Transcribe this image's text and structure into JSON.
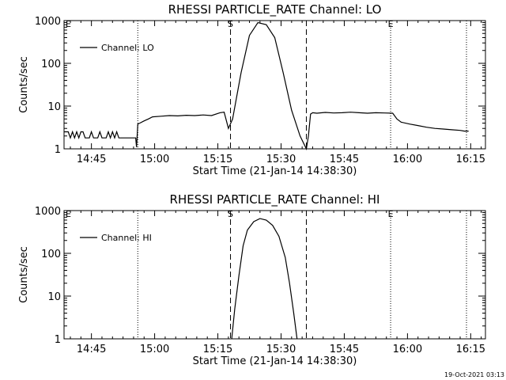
{
  "timestamp": "19-Oct-2021 03:13",
  "chart_data": [
    {
      "type": "line",
      "title": "RHESSI PARTICLE_RATE Channel: LO",
      "xlabel": "Start Time (21-Jan-14 14:38:30)",
      "ylabel": "Counts/sec",
      "yscale": "log",
      "xlim_min": [
        0,
        100
      ],
      "ylim": [
        1,
        1000
      ],
      "x_ticks": [
        6.5,
        21.5,
        36.5,
        51.5,
        66.5,
        81.5,
        96.5
      ],
      "x_tick_labels": [
        "14:45",
        "15:00",
        "15:15",
        "15:30",
        "15:45",
        "16:00",
        "16:15"
      ],
      "y_ticks": [
        1,
        10,
        100,
        1000
      ],
      "y_tick_labels": [
        "1",
        "10",
        "100",
        "1000"
      ],
      "legend": {
        "entries": [
          "Channel: LO"
        ],
        "position": "top-left"
      },
      "dashed_lines_min": [
        39.5,
        57.5
      ],
      "dotted_lines_min": [
        17.5,
        77.5,
        95.5
      ],
      "markers": [
        {
          "label": "S",
          "x": 39.5
        },
        {
          "label": "E",
          "x": 77.5
        }
      ],
      "series": [
        {
          "name": "Channel: LO",
          "x": [
            0,
            1,
            1.5,
            2,
            2.5,
            3,
            3.5,
            4,
            4.5,
            5,
            6,
            6.5,
            7,
            8,
            8.5,
            9,
            10,
            10.5,
            11,
            11.5,
            12,
            12.5,
            13,
            15,
            17,
            17.2,
            17.5,
            18,
            19,
            20,
            21,
            23,
            25,
            27,
            29,
            31,
            33,
            35,
            37,
            38,
            39,
            40,
            42,
            44,
            46,
            48,
            50,
            52,
            54,
            56,
            57.5,
            58,
            58.5,
            59,
            60,
            62,
            64,
            66,
            68,
            70,
            72,
            74,
            76,
            78,
            79,
            80,
            82,
            84,
            86,
            88,
            90,
            92,
            94,
            95,
            96
          ],
          "y": [
            2.5,
            2.5,
            1.8,
            2.5,
            1.8,
            2.5,
            1.8,
            2.5,
            2.5,
            1.8,
            1.8,
            2.5,
            1.8,
            1.8,
            2.5,
            1.8,
            1.8,
            2.5,
            1.8,
            2.5,
            1.8,
            2.5,
            1.8,
            1.8,
            1.8,
            1.1,
            3.8,
            4.0,
            4.5,
            5.0,
            5.6,
            5.8,
            6.0,
            5.9,
            6.1,
            6.0,
            6.2,
            6.0,
            7.0,
            7.2,
            3.0,
            5.0,
            60,
            450,
            900,
            800,
            400,
            60,
            8,
            2.0,
            1.0,
            2.0,
            6.5,
            7.0,
            6.8,
            7.1,
            6.9,
            7.0,
            7.2,
            7.0,
            6.8,
            7.0,
            6.9,
            6.8,
            5.0,
            4.2,
            3.8,
            3.5,
            3.2,
            3.0,
            2.9,
            2.8,
            2.7,
            2.6,
            2.6
          ]
        }
      ]
    },
    {
      "type": "line",
      "title": "RHESSI PARTICLE_RATE Channel: HI",
      "xlabel": "Start Time (21-Jan-14 14:38:30)",
      "ylabel": "Counts/sec",
      "yscale": "log",
      "xlim_min": [
        0,
        100
      ],
      "ylim": [
        1,
        1000
      ],
      "x_ticks": [
        6.5,
        21.5,
        36.5,
        51.5,
        66.5,
        81.5,
        96.5
      ],
      "x_tick_labels": [
        "14:45",
        "15:00",
        "15:15",
        "15:30",
        "15:45",
        "16:00",
        "16:15"
      ],
      "y_ticks": [
        1,
        10,
        100,
        1000
      ],
      "y_tick_labels": [
        "1",
        "10",
        "100",
        "1000"
      ],
      "legend": {
        "entries": [
          "Channel: HI"
        ],
        "position": "top-left"
      },
      "dashed_lines_min": [
        39.5,
        57.5
      ],
      "dotted_lines_min": [
        17.5,
        77.5,
        95.5
      ],
      "markers": [
        {
          "label": "S",
          "x": 39.5
        },
        {
          "label": "E",
          "x": 77.5
        }
      ],
      "series": [
        {
          "name": "Channel: HI",
          "x": [
            39.8,
            40.5,
            41.5,
            42.5,
            43.5,
            45,
            46.5,
            48,
            49.5,
            51,
            52.5,
            53.5,
            54.5,
            55.3
          ],
          "y": [
            1,
            5,
            30,
            150,
            350,
            550,
            650,
            600,
            450,
            250,
            80,
            20,
            4,
            1
          ]
        }
      ]
    }
  ]
}
